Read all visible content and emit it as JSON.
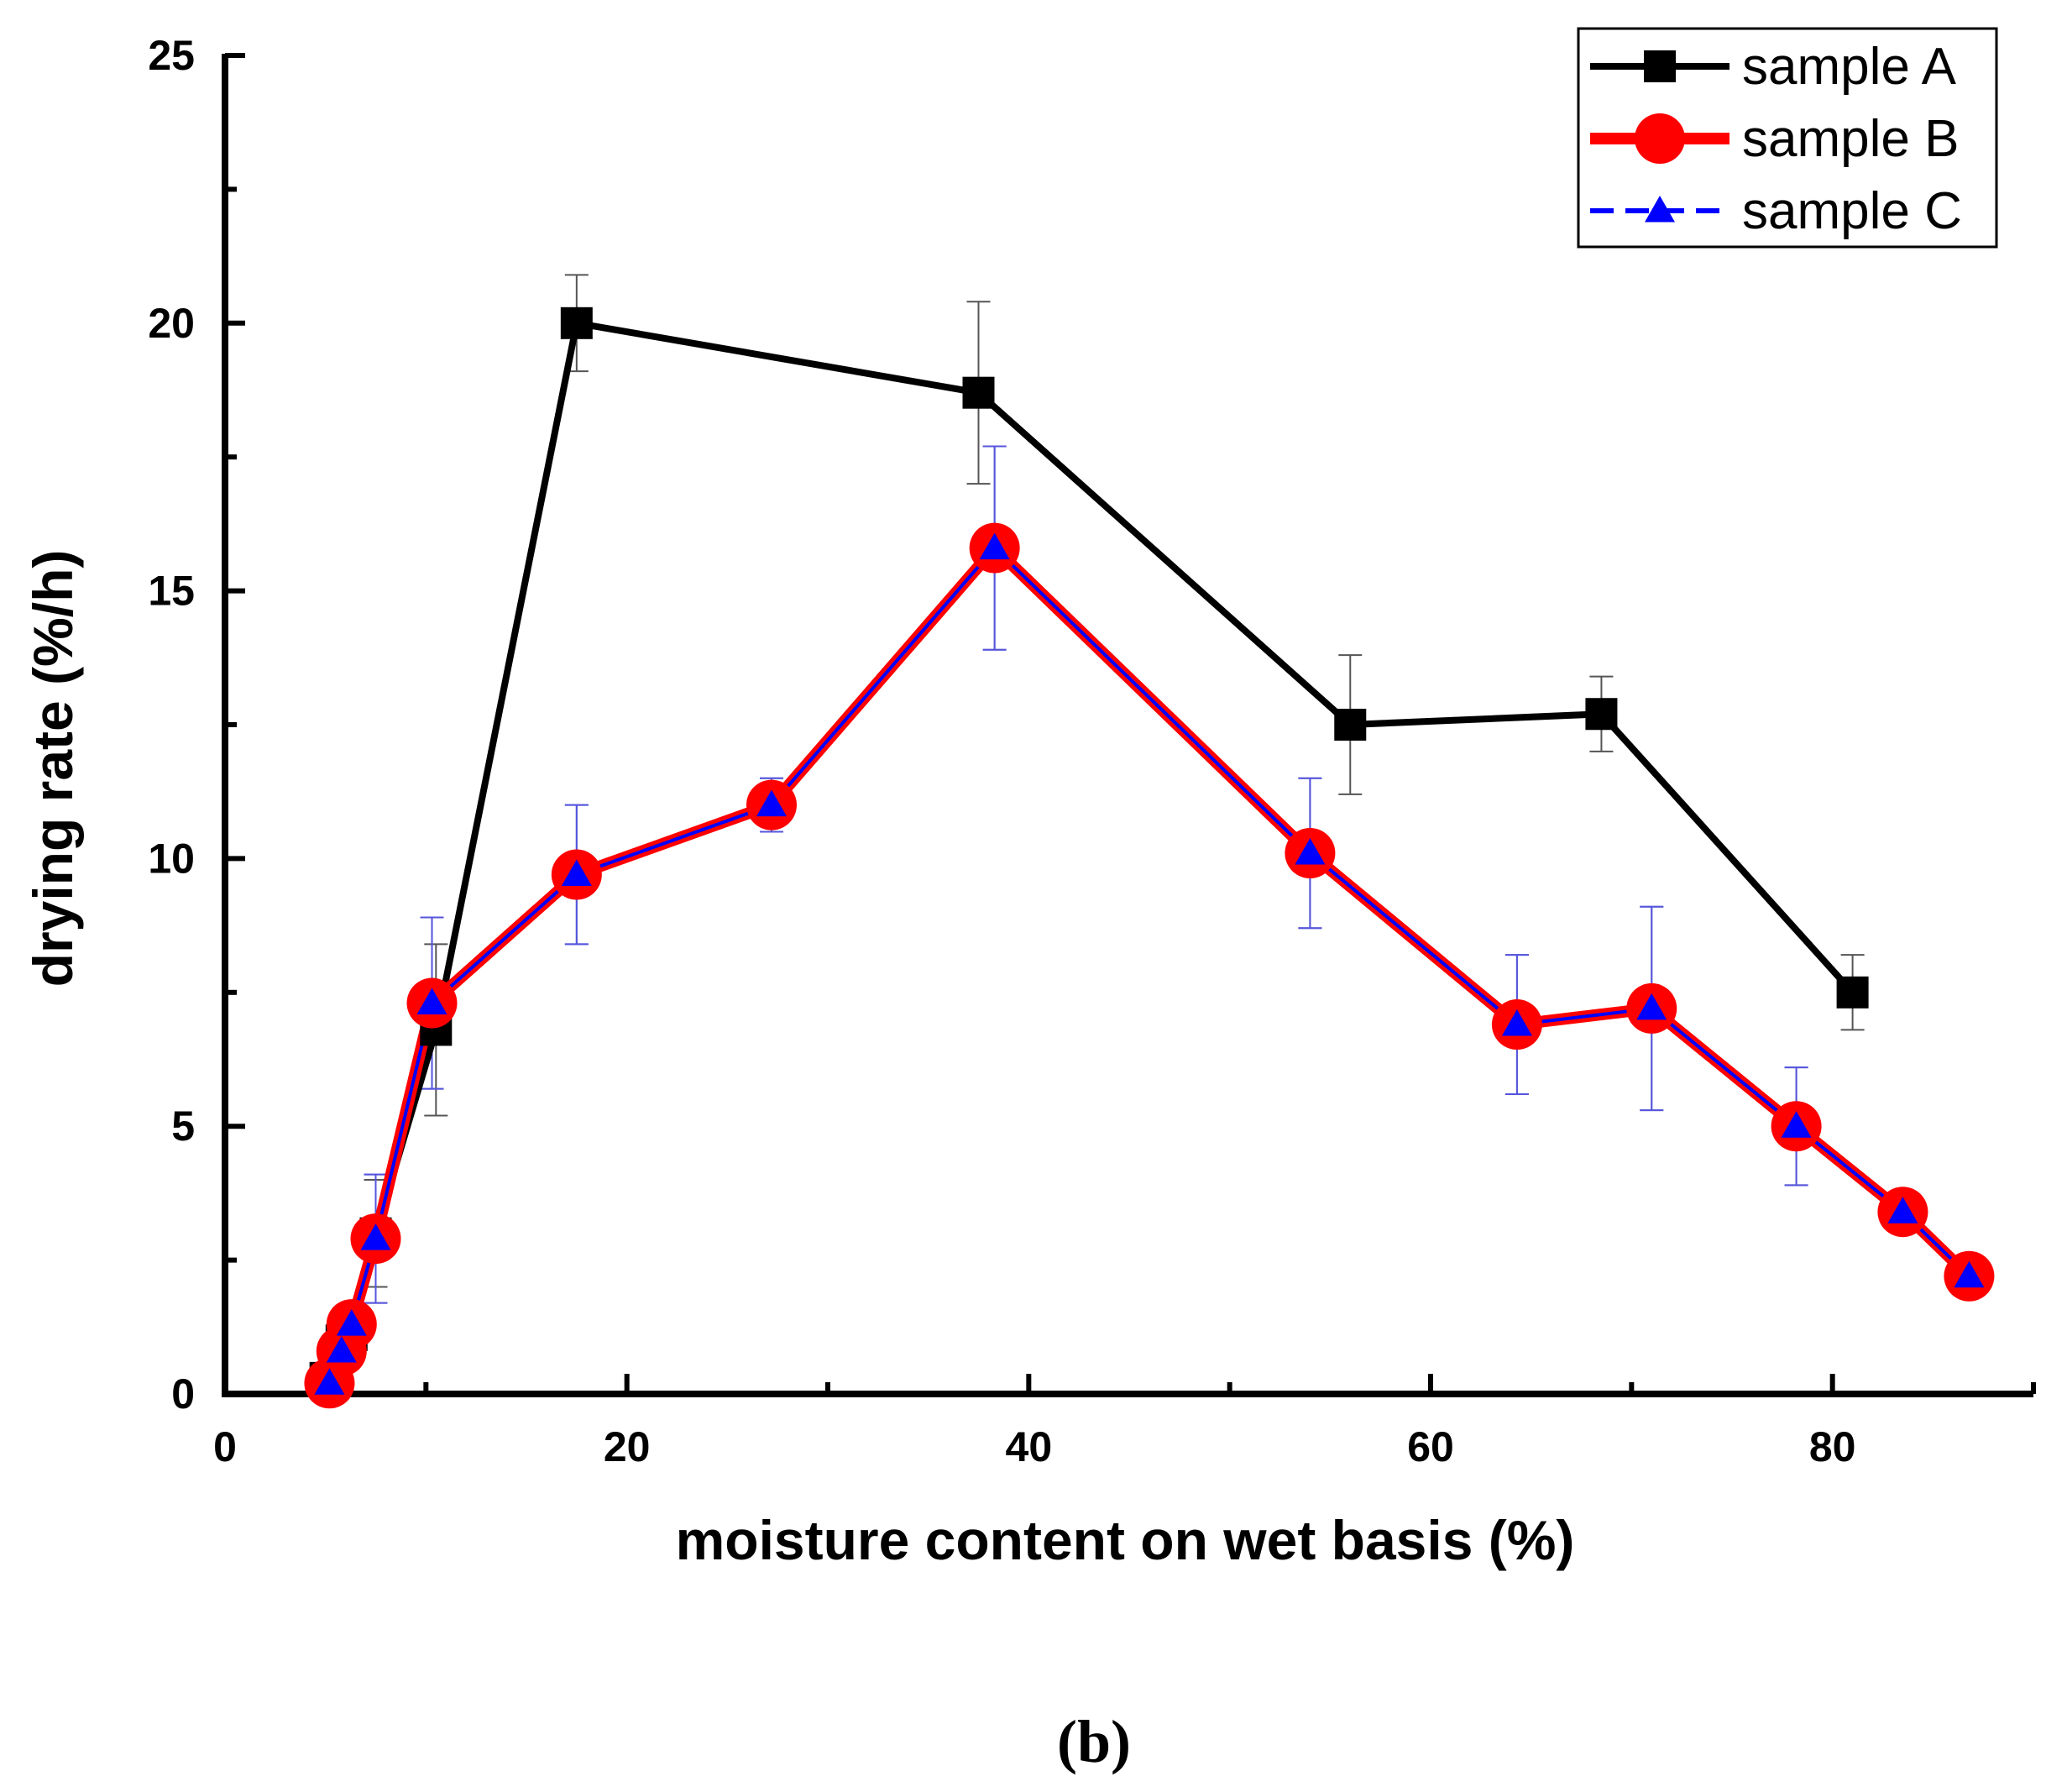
{
  "chart_data": {
    "type": "line",
    "title": "",
    "xlabel": "moisture content on wet basis (%)",
    "ylabel": "drying rate (%/h)",
    "xlim": [
      0,
      90
    ],
    "ylim": [
      0,
      25
    ],
    "x_ticks": [
      0,
      20,
      40,
      60,
      80
    ],
    "y_ticks": [
      0,
      5,
      10,
      15,
      20,
      25
    ],
    "grid": false,
    "legend_position": "top-right",
    "panel_label": "(b)",
    "series": [
      {
        "name": "sample A",
        "color": "#000000",
        "marker": "square",
        "points": [
          {
            "x": 5.0,
            "y": 0.3,
            "err": 0.0
          },
          {
            "x": 5.8,
            "y": 1.0,
            "err": 0.0
          },
          {
            "x": 6.3,
            "y": 1.1,
            "err": 0.0
          },
          {
            "x": 7.5,
            "y": 3.0,
            "err": 1.0
          },
          {
            "x": 10.5,
            "y": 6.8,
            "err": 1.6
          },
          {
            "x": 17.5,
            "y": 20.0,
            "err": 0.9
          },
          {
            "x": 37.5,
            "y": 18.7,
            "err": 1.7
          },
          {
            "x": 56.0,
            "y": 12.5,
            "err": 1.3
          },
          {
            "x": 68.5,
            "y": 12.7,
            "err": 0.7
          },
          {
            "x": 81.0,
            "y": 7.5,
            "err": 0.7
          }
        ]
      },
      {
        "name": "sample B",
        "color": "#ff0000",
        "marker": "circle",
        "points": [
          {
            "x": 5.2,
            "y": 0.2,
            "err": 0.0
          },
          {
            "x": 5.8,
            "y": 0.8,
            "err": 0.0
          },
          {
            "x": 6.3,
            "y": 1.3,
            "err": 0.0
          },
          {
            "x": 7.5,
            "y": 2.9,
            "err": 1.2
          },
          {
            "x": 10.3,
            "y": 7.3,
            "err": 1.6
          },
          {
            "x": 17.5,
            "y": 9.7,
            "err": 1.3
          },
          {
            "x": 27.2,
            "y": 11.0,
            "err": 0.5
          },
          {
            "x": 38.3,
            "y": 15.8,
            "err": 1.9
          },
          {
            "x": 54.0,
            "y": 10.1,
            "err": 1.4
          },
          {
            "x": 64.3,
            "y": 6.9,
            "err": 1.3
          },
          {
            "x": 71.0,
            "y": 7.2,
            "err": 1.9
          },
          {
            "x": 78.2,
            "y": 5.0,
            "err": 1.1
          },
          {
            "x": 83.5,
            "y": 3.4,
            "err": 0.0
          },
          {
            "x": 86.8,
            "y": 2.2,
            "err": 0.0
          }
        ]
      },
      {
        "name": "sample C",
        "color": "#0000ff",
        "marker": "triangle",
        "points": [
          {
            "x": 5.2,
            "y": 0.2,
            "err": 0.0
          },
          {
            "x": 5.8,
            "y": 0.8,
            "err": 0.0
          },
          {
            "x": 6.3,
            "y": 1.3,
            "err": 0.0
          },
          {
            "x": 7.5,
            "y": 2.9,
            "err": 1.2
          },
          {
            "x": 10.3,
            "y": 7.3,
            "err": 1.6
          },
          {
            "x": 17.5,
            "y": 9.7,
            "err": 1.3
          },
          {
            "x": 27.2,
            "y": 11.0,
            "err": 0.5
          },
          {
            "x": 38.3,
            "y": 15.8,
            "err": 1.9
          },
          {
            "x": 54.0,
            "y": 10.1,
            "err": 1.4
          },
          {
            "x": 64.3,
            "y": 6.9,
            "err": 1.3
          },
          {
            "x": 71.0,
            "y": 7.2,
            "err": 1.9
          },
          {
            "x": 78.2,
            "y": 5.0,
            "err": 1.1
          },
          {
            "x": 83.5,
            "y": 3.4,
            "err": 0.0
          },
          {
            "x": 86.8,
            "y": 2.2,
            "err": 0.0
          }
        ]
      }
    ]
  }
}
